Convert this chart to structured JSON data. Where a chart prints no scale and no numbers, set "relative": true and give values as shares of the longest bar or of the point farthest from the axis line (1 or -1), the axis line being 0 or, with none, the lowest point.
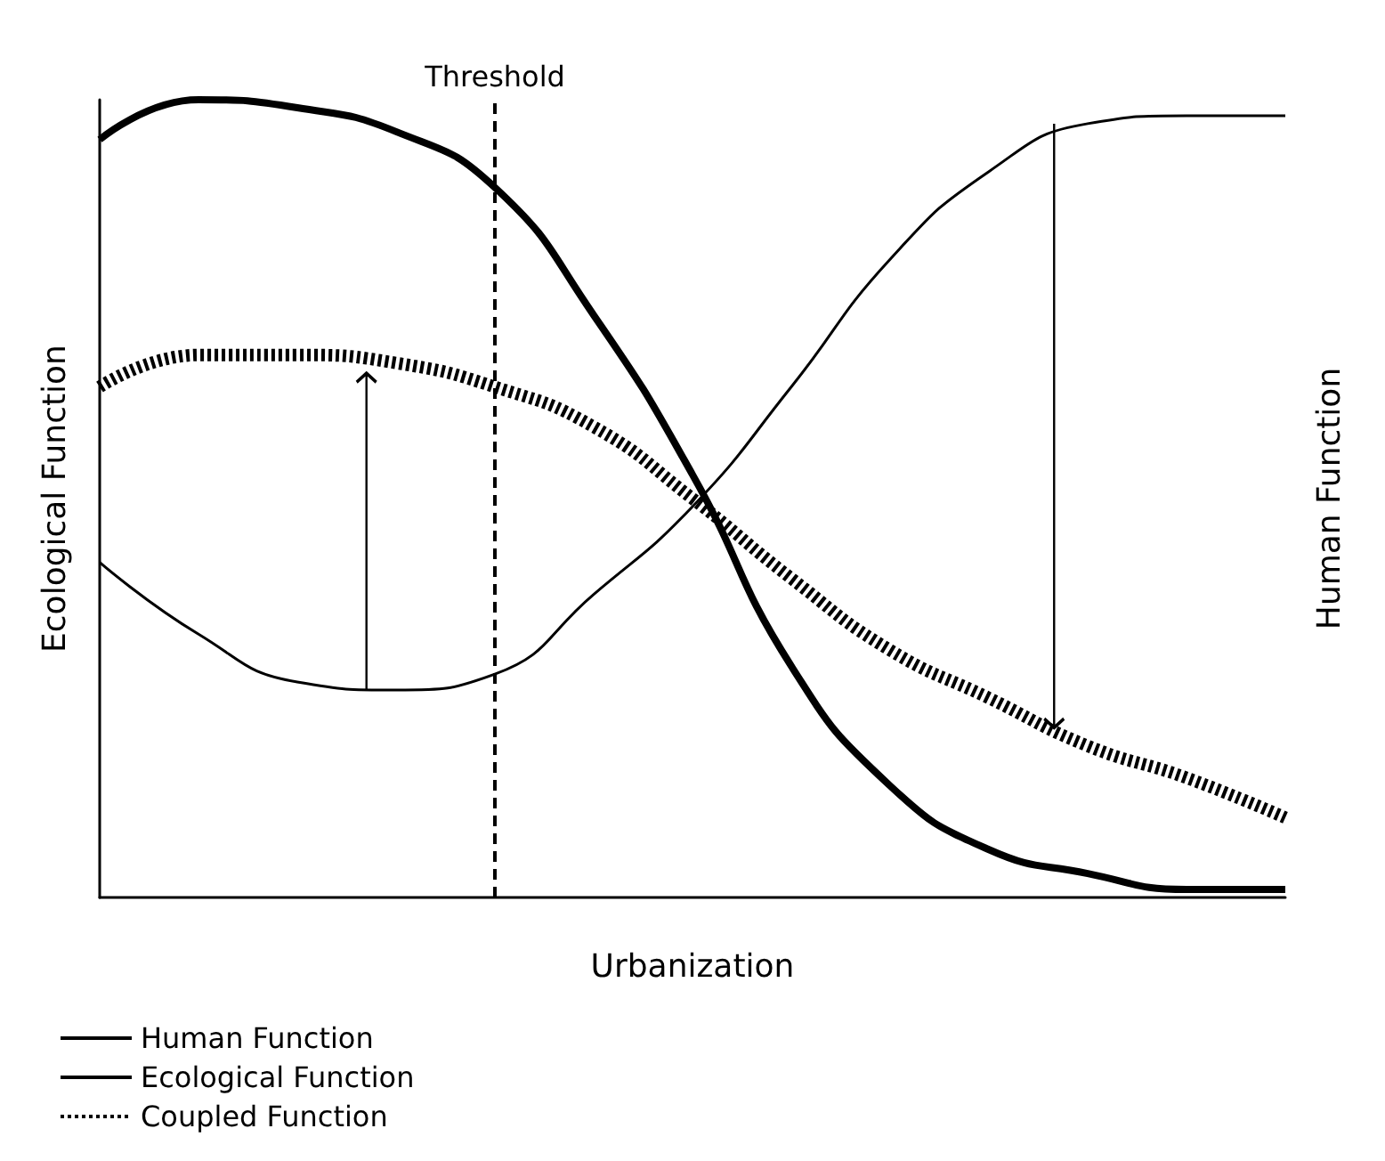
{
  "chart_data": {
    "type": "line",
    "relative": true,
    "xlabel": "Urbanization",
    "ylabel": "Ecological Function",
    "y2label": "Human Function",
    "categories": [
      null,
      null,
      null,
      null,
      null,
      null,
      null,
      null,
      null,
      null,
      null,
      null,
      null
    ],
    "series": [
      {
        "name": "Human Function",
        "color": "#000000",
        "values": [
          0.42,
          0.33,
          0.27,
          0.26,
          0.28,
          0.38,
          0.49,
          0.64,
          0.8,
          0.91,
          0.97,
          0.98,
          0.98
        ]
      },
      {
        "name": "Ecological Function",
        "color": "#000000",
        "values": [
          0.95,
          1.0,
          0.99,
          0.96,
          0.89,
          0.73,
          0.53,
          0.29,
          0.14,
          0.06,
          0.03,
          0.01,
          0.01
        ]
      },
      {
        "name": "Coupled Function",
        "color": "#000000",
        "line_style": "dotted",
        "values": [
          0.64,
          0.68,
          0.68,
          0.67,
          0.64,
          0.59,
          0.5,
          0.4,
          0.31,
          0.25,
          0.19,
          0.15,
          0.1
        ]
      }
    ],
    "annotations": [
      "Threshold"
    ],
    "legend": "bottom left",
    "grid": false,
    "marker": "none",
    "line_style": "solid"
  }
}
